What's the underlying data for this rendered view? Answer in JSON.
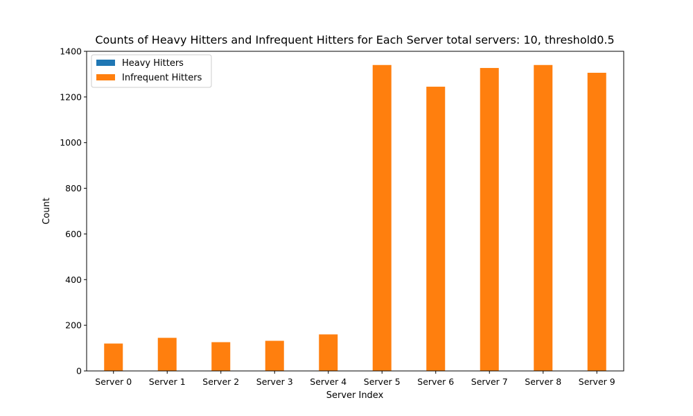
{
  "chart_data": {
    "type": "bar",
    "title": "Counts of Heavy Hitters and Infrequent Hitters for Each Server total servers: 10, threshold0.5",
    "xlabel": "Server Index",
    "ylabel": "Count",
    "categories": [
      "Server 0",
      "Server 1",
      "Server 2",
      "Server 3",
      "Server 4",
      "Server 5",
      "Server 6",
      "Server 7",
      "Server 8",
      "Server 9"
    ],
    "series": [
      {
        "name": "Heavy Hitters",
        "color": "#1f77b4",
        "values": [
          0,
          0,
          0,
          0,
          0,
          0,
          0,
          0,
          0,
          0
        ]
      },
      {
        "name": "Infrequent Hitters",
        "color": "#ff7f0e",
        "values": [
          120,
          145,
          126,
          132,
          160,
          1340,
          1245,
          1327,
          1340,
          1306
        ]
      }
    ],
    "ylim": [
      0,
      1400
    ],
    "yticks": [
      0,
      200,
      400,
      600,
      800,
      1000,
      1200,
      1400
    ],
    "legend_position": "upper-left",
    "grid": false
  }
}
